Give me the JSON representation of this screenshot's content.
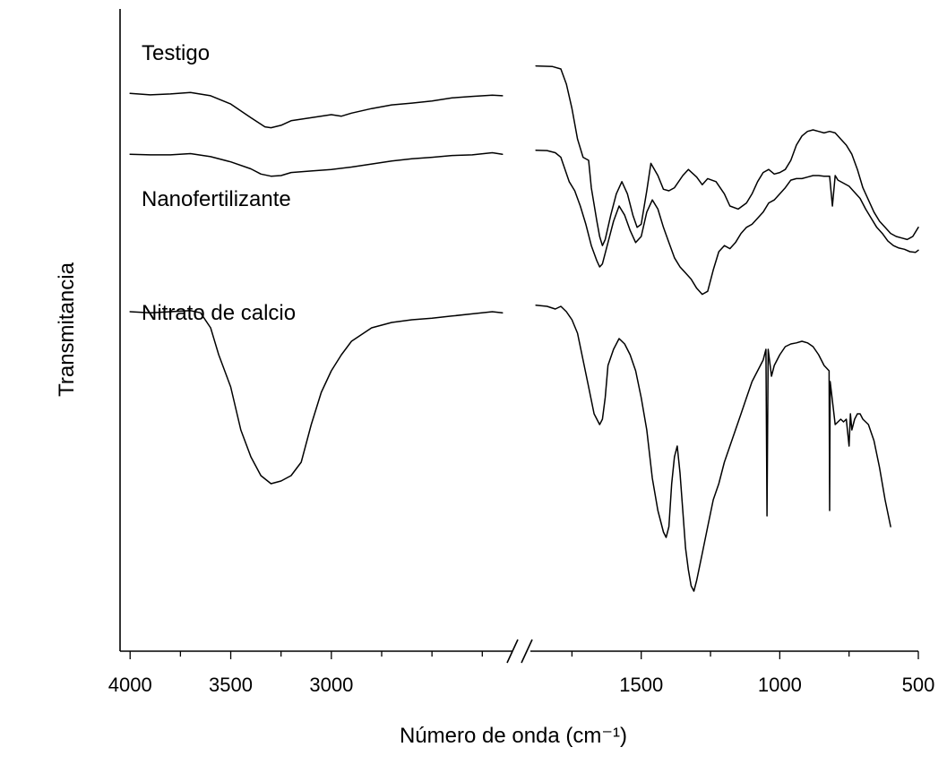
{
  "chart_data": {
    "type": "line",
    "title": "",
    "xlabel": "Número de onda (cm⁻¹)",
    "ylabel": "Transmitancia",
    "x_break": [
      2100,
      1900
    ],
    "x_left_range": [
      4050,
      2100
    ],
    "x_right_range": [
      1900,
      500
    ],
    "major_ticks_left": [
      4000,
      3500,
      3000
    ],
    "major_ticks_right": [
      1500,
      1000,
      500
    ],
    "y_ticks": false,
    "grid": false,
    "legend": "inline labels beside each trace",
    "series": [
      {
        "name": "Testigo",
        "points": [
          [
            4000,
            0.87
          ],
          [
            3900,
            0.865
          ],
          [
            3800,
            0.868
          ],
          [
            3700,
            0.873
          ],
          [
            3600,
            0.862
          ],
          [
            3500,
            0.835
          ],
          [
            3400,
            0.79
          ],
          [
            3330,
            0.76
          ],
          [
            3300,
            0.757
          ],
          [
            3250,
            0.765
          ],
          [
            3200,
            0.78
          ],
          [
            3100,
            0.79
          ],
          [
            3000,
            0.8
          ],
          [
            2950,
            0.795
          ],
          [
            2900,
            0.805
          ],
          [
            2800,
            0.82
          ],
          [
            2700,
            0.832
          ],
          [
            2600,
            0.838
          ],
          [
            2500,
            0.845
          ],
          [
            2400,
            0.855
          ],
          [
            2300,
            0.86
          ],
          [
            2200,
            0.864
          ],
          [
            2150,
            0.862
          ],
          [
            1880,
            0.96
          ],
          [
            1820,
            0.958
          ],
          [
            1790,
            0.95
          ],
          [
            1770,
            0.9
          ],
          [
            1750,
            0.82
          ],
          [
            1730,
            0.72
          ],
          [
            1710,
            0.66
          ],
          [
            1690,
            0.65
          ],
          [
            1680,
            0.56
          ],
          [
            1660,
            0.45
          ],
          [
            1650,
            0.4
          ],
          [
            1640,
            0.37
          ],
          [
            1630,
            0.39
          ],
          [
            1610,
            0.47
          ],
          [
            1590,
            0.54
          ],
          [
            1570,
            0.58
          ],
          [
            1550,
            0.54
          ],
          [
            1530,
            0.47
          ],
          [
            1515,
            0.43
          ],
          [
            1500,
            0.44
          ],
          [
            1480,
            0.55
          ],
          [
            1465,
            0.64
          ],
          [
            1440,
            0.6
          ],
          [
            1420,
            0.555
          ],
          [
            1400,
            0.55
          ],
          [
            1380,
            0.56
          ],
          [
            1350,
            0.6
          ],
          [
            1330,
            0.62
          ],
          [
            1300,
            0.595
          ],
          [
            1280,
            0.57
          ],
          [
            1260,
            0.59
          ],
          [
            1230,
            0.58
          ],
          [
            1200,
            0.54
          ],
          [
            1180,
            0.5
          ],
          [
            1150,
            0.49
          ],
          [
            1120,
            0.51
          ],
          [
            1100,
            0.54
          ],
          [
            1080,
            0.58
          ],
          [
            1060,
            0.61
          ],
          [
            1040,
            0.62
          ],
          [
            1020,
            0.605
          ],
          [
            1000,
            0.61
          ],
          [
            980,
            0.62
          ],
          [
            960,
            0.65
          ],
          [
            940,
            0.7
          ],
          [
            920,
            0.73
          ],
          [
            900,
            0.745
          ],
          [
            880,
            0.75
          ],
          [
            860,
            0.745
          ],
          [
            840,
            0.74
          ],
          [
            820,
            0.745
          ],
          [
            800,
            0.74
          ],
          [
            780,
            0.72
          ],
          [
            760,
            0.7
          ],
          [
            740,
            0.67
          ],
          [
            720,
            0.62
          ],
          [
            700,
            0.56
          ],
          [
            680,
            0.52
          ],
          [
            660,
            0.48
          ],
          [
            640,
            0.45
          ],
          [
            620,
            0.43
          ],
          [
            600,
            0.41
          ],
          [
            580,
            0.4
          ],
          [
            560,
            0.395
          ],
          [
            540,
            0.39
          ],
          [
            520,
            0.4
          ],
          [
            500,
            0.43
          ]
        ]
      },
      {
        "name": "Nanofertilizante",
        "points": [
          [
            4000,
            0.67
          ],
          [
            3900,
            0.668
          ],
          [
            3800,
            0.668
          ],
          [
            3700,
            0.672
          ],
          [
            3600,
            0.662
          ],
          [
            3500,
            0.645
          ],
          [
            3400,
            0.622
          ],
          [
            3350,
            0.605
          ],
          [
            3300,
            0.598
          ],
          [
            3250,
            0.6
          ],
          [
            3200,
            0.61
          ],
          [
            3100,
            0.615
          ],
          [
            3000,
            0.62
          ],
          [
            2900,
            0.628
          ],
          [
            2800,
            0.638
          ],
          [
            2700,
            0.648
          ],
          [
            2600,
            0.655
          ],
          [
            2500,
            0.66
          ],
          [
            2400,
            0.666
          ],
          [
            2300,
            0.668
          ],
          [
            2200,
            0.675
          ],
          [
            2150,
            0.67
          ],
          [
            1880,
            0.683
          ],
          [
            1840,
            0.682
          ],
          [
            1810,
            0.675
          ],
          [
            1790,
            0.66
          ],
          [
            1760,
            0.58
          ],
          [
            1740,
            0.55
          ],
          [
            1720,
            0.5
          ],
          [
            1700,
            0.44
          ],
          [
            1680,
            0.37
          ],
          [
            1660,
            0.32
          ],
          [
            1650,
            0.3
          ],
          [
            1640,
            0.31
          ],
          [
            1620,
            0.38
          ],
          [
            1600,
            0.45
          ],
          [
            1580,
            0.5
          ],
          [
            1560,
            0.47
          ],
          [
            1540,
            0.42
          ],
          [
            1520,
            0.38
          ],
          [
            1500,
            0.4
          ],
          [
            1480,
            0.48
          ],
          [
            1460,
            0.52
          ],
          [
            1440,
            0.49
          ],
          [
            1420,
            0.43
          ],
          [
            1400,
            0.38
          ],
          [
            1380,
            0.33
          ],
          [
            1360,
            0.3
          ],
          [
            1340,
            0.28
          ],
          [
            1320,
            0.26
          ],
          [
            1300,
            0.23
          ],
          [
            1280,
            0.21
          ],
          [
            1260,
            0.22
          ],
          [
            1240,
            0.29
          ],
          [
            1220,
            0.35
          ],
          [
            1200,
            0.37
          ],
          [
            1180,
            0.36
          ],
          [
            1160,
            0.38
          ],
          [
            1140,
            0.41
          ],
          [
            1120,
            0.43
          ],
          [
            1100,
            0.44
          ],
          [
            1080,
            0.46
          ],
          [
            1060,
            0.48
          ],
          [
            1040,
            0.51
          ],
          [
            1020,
            0.52
          ],
          [
            1000,
            0.54
          ],
          [
            980,
            0.56
          ],
          [
            960,
            0.585
          ],
          [
            940,
            0.59
          ],
          [
            920,
            0.59
          ],
          [
            900,
            0.595
          ],
          [
            880,
            0.6
          ],
          [
            860,
            0.6
          ],
          [
            840,
            0.598
          ],
          [
            820,
            0.598
          ],
          [
            810,
            0.5
          ],
          [
            800,
            0.6
          ],
          [
            790,
            0.585
          ],
          [
            770,
            0.575
          ],
          [
            750,
            0.565
          ],
          [
            730,
            0.545
          ],
          [
            710,
            0.525
          ],
          [
            690,
            0.49
          ],
          [
            670,
            0.46
          ],
          [
            650,
            0.43
          ],
          [
            630,
            0.41
          ],
          [
            610,
            0.385
          ],
          [
            590,
            0.37
          ],
          [
            570,
            0.362
          ],
          [
            550,
            0.358
          ],
          [
            530,
            0.35
          ],
          [
            510,
            0.348
          ],
          [
            500,
            0.355
          ]
        ]
      },
      {
        "name": "Nitrato de calcio",
        "points": [
          [
            4000,
            0.52
          ],
          [
            3900,
            0.518
          ],
          [
            3800,
            0.52
          ],
          [
            3700,
            0.522
          ],
          [
            3650,
            0.518
          ],
          [
            3600,
            0.49
          ],
          [
            3560,
            0.44
          ],
          [
            3500,
            0.38
          ],
          [
            3450,
            0.3
          ],
          [
            3400,
            0.25
          ],
          [
            3350,
            0.215
          ],
          [
            3300,
            0.2
          ],
          [
            3250,
            0.205
          ],
          [
            3200,
            0.215
          ],
          [
            3150,
            0.24
          ],
          [
            3100,
            0.31
          ],
          [
            3050,
            0.37
          ],
          [
            3000,
            0.41
          ],
          [
            2950,
            0.44
          ],
          [
            2900,
            0.465
          ],
          [
            2800,
            0.49
          ],
          [
            2700,
            0.5
          ],
          [
            2600,
            0.505
          ],
          [
            2500,
            0.508
          ],
          [
            2400,
            0.512
          ],
          [
            2300,
            0.516
          ],
          [
            2200,
            0.52
          ],
          [
            2150,
            0.518
          ],
          [
            1880,
            0.532
          ],
          [
            1840,
            0.53
          ],
          [
            1810,
            0.525
          ],
          [
            1790,
            0.53
          ],
          [
            1770,
            0.52
          ],
          [
            1750,
            0.505
          ],
          [
            1730,
            0.48
          ],
          [
            1710,
            0.43
          ],
          [
            1690,
            0.38
          ],
          [
            1670,
            0.33
          ],
          [
            1650,
            0.31
          ],
          [
            1640,
            0.32
          ],
          [
            1630,
            0.36
          ],
          [
            1620,
            0.42
          ],
          [
            1600,
            0.45
          ],
          [
            1580,
            0.47
          ],
          [
            1560,
            0.46
          ],
          [
            1540,
            0.44
          ],
          [
            1520,
            0.41
          ],
          [
            1500,
            0.36
          ],
          [
            1480,
            0.3
          ],
          [
            1460,
            0.21
          ],
          [
            1440,
            0.15
          ],
          [
            1420,
            0.11
          ],
          [
            1410,
            0.1
          ],
          [
            1400,
            0.12
          ],
          [
            1390,
            0.2
          ],
          [
            1380,
            0.25
          ],
          [
            1370,
            0.27
          ],
          [
            1360,
            0.22
          ],
          [
            1350,
            0.15
          ],
          [
            1340,
            0.08
          ],
          [
            1330,
            0.04
          ],
          [
            1320,
            0.01
          ],
          [
            1310,
            0.0
          ],
          [
            1300,
            0.02
          ],
          [
            1280,
            0.07
          ],
          [
            1260,
            0.12
          ],
          [
            1240,
            0.17
          ],
          [
            1220,
            0.2
          ],
          [
            1200,
            0.24
          ],
          [
            1180,
            0.27
          ],
          [
            1160,
            0.3
          ],
          [
            1140,
            0.33
          ],
          [
            1120,
            0.36
          ],
          [
            1100,
            0.39
          ],
          [
            1080,
            0.41
          ],
          [
            1060,
            0.43
          ],
          [
            1050,
            0.45
          ],
          [
            1046,
            0.14
          ],
          [
            1042,
            0.45
          ],
          [
            1030,
            0.4
          ],
          [
            1020,
            0.42
          ],
          [
            1000,
            0.44
          ],
          [
            980,
            0.455
          ],
          [
            960,
            0.46
          ],
          [
            940,
            0.462
          ],
          [
            920,
            0.465
          ],
          [
            900,
            0.462
          ],
          [
            880,
            0.455
          ],
          [
            860,
            0.44
          ],
          [
            840,
            0.42
          ],
          [
            822,
            0.41
          ],
          [
            820,
            0.15
          ],
          [
            818,
            0.39
          ],
          [
            800,
            0.31
          ],
          [
            780,
            0.32
          ],
          [
            770,
            0.315
          ],
          [
            760,
            0.32
          ],
          [
            750,
            0.27
          ],
          [
            745,
            0.33
          ],
          [
            740,
            0.3
          ],
          [
            730,
            0.32
          ],
          [
            720,
            0.33
          ],
          [
            710,
            0.33
          ],
          [
            700,
            0.32
          ],
          [
            680,
            0.31
          ],
          [
            660,
            0.28
          ],
          [
            640,
            0.23
          ],
          [
            620,
            0.17
          ],
          [
            600,
            0.12
          ]
        ]
      }
    ]
  }
}
